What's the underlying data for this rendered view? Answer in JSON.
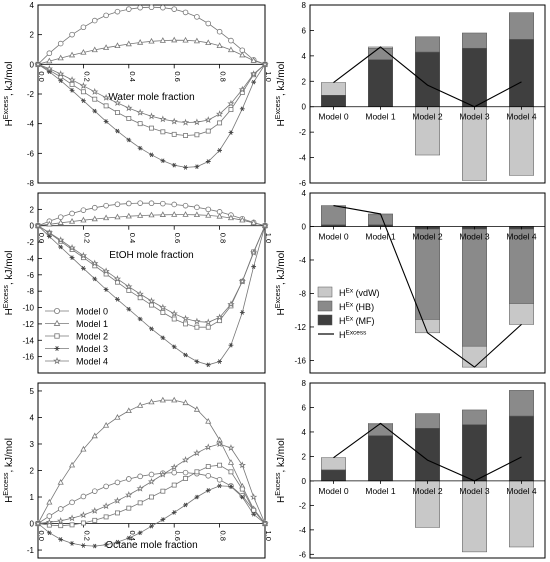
{
  "figure": {
    "legend_lines": {
      "entries": [
        "Model 0",
        "Model 1",
        "Model 2",
        "Model 3",
        "Model 4"
      ],
      "markers": [
        "circle",
        "triangle",
        "square",
        "star6",
        "star5"
      ]
    },
    "legend_bars": {
      "entries": [
        {
          "base": "H",
          "sup": "Ex",
          "rest": " (vdW)",
          "color": "#c8c8c8"
        },
        {
          "base": "H",
          "sup": "Ex",
          "rest": " (HB)",
          "color": "#8a8a8a"
        },
        {
          "base": "H",
          "sup": "Ex",
          "rest": " (MF)",
          "color": "#3f3f3f"
        },
        {
          "base": "H",
          "sup": "Excess",
          "rest": "",
          "color": "#000000"
        }
      ]
    },
    "colors": {
      "vdW": "#c8c8c8",
      "HB": "#8a8a8a",
      "MF": "#3f3f3f",
      "line": "#000000",
      "curve": "#777777"
    }
  },
  "chart_data": [
    {
      "id": "line-water",
      "type": "line",
      "xlabel": "Water mole fraction",
      "ylabel": {
        "base": "H",
        "sup": "Excess",
        "rest": ", kJ/mol"
      },
      "xlim": [
        0,
        1
      ],
      "ylim": [
        -8,
        4
      ],
      "xticks": [
        0.0,
        0.2,
        0.4,
        0.6,
        0.8,
        1.0
      ],
      "yticks": [
        -8,
        -6,
        -4,
        -2,
        0,
        2,
        4
      ],
      "series": [
        {
          "name": "Model 0",
          "x": [
            0,
            0.05,
            0.1,
            0.15,
            0.2,
            0.25,
            0.3,
            0.35,
            0.4,
            0.45,
            0.5,
            0.55,
            0.6,
            0.65,
            0.7,
            0.75,
            0.8,
            0.85,
            0.9,
            0.95,
            1
          ],
          "y": [
            0,
            0.75,
            1.4,
            2.0,
            2.5,
            2.95,
            3.3,
            3.55,
            3.72,
            3.82,
            3.85,
            3.82,
            3.72,
            3.5,
            3.2,
            2.75,
            2.2,
            1.6,
            0.95,
            0.3,
            0
          ]
        },
        {
          "name": "Model 1",
          "x": [
            0,
            0.05,
            0.1,
            0.15,
            0.2,
            0.25,
            0.3,
            0.35,
            0.4,
            0.45,
            0.5,
            0.55,
            0.6,
            0.65,
            0.7,
            0.75,
            0.8,
            0.85,
            0.9,
            0.95,
            1
          ],
          "y": [
            0,
            0.22,
            0.42,
            0.62,
            0.8,
            0.97,
            1.12,
            1.25,
            1.37,
            1.47,
            1.55,
            1.6,
            1.63,
            1.62,
            1.57,
            1.45,
            1.25,
            0.97,
            0.62,
            0.25,
            0
          ]
        },
        {
          "name": "Model 2",
          "x": [
            0,
            0.05,
            0.1,
            0.15,
            0.2,
            0.25,
            0.3,
            0.35,
            0.4,
            0.45,
            0.5,
            0.55,
            0.6,
            0.65,
            0.7,
            0.75,
            0.8,
            0.85,
            0.9,
            0.95,
            1
          ],
          "y": [
            0,
            -0.4,
            -0.85,
            -1.35,
            -1.85,
            -2.35,
            -2.8,
            -3.25,
            -3.65,
            -4.0,
            -4.3,
            -4.55,
            -4.72,
            -4.8,
            -4.75,
            -4.5,
            -3.95,
            -3.05,
            -1.9,
            -0.7,
            0
          ]
        },
        {
          "name": "Model 3",
          "x": [
            0,
            0.05,
            0.1,
            0.15,
            0.2,
            0.25,
            0.3,
            0.35,
            0.4,
            0.45,
            0.5,
            0.55,
            0.6,
            0.65,
            0.7,
            0.75,
            0.8,
            0.85,
            0.9,
            0.95,
            1
          ],
          "y": [
            0,
            -0.5,
            -1.1,
            -1.75,
            -2.45,
            -3.15,
            -3.85,
            -4.5,
            -5.1,
            -5.65,
            -6.1,
            -6.5,
            -6.8,
            -6.95,
            -6.9,
            -6.55,
            -5.8,
            -4.6,
            -3.0,
            -1.2,
            0
          ]
        },
        {
          "name": "Model 4",
          "x": [
            0,
            0.05,
            0.1,
            0.15,
            0.2,
            0.25,
            0.3,
            0.35,
            0.4,
            0.45,
            0.5,
            0.55,
            0.6,
            0.65,
            0.7,
            0.75,
            0.8,
            0.85,
            0.9,
            0.95,
            1
          ],
          "y": [
            0,
            -0.3,
            -0.65,
            -1.05,
            -1.45,
            -1.85,
            -2.25,
            -2.6,
            -2.95,
            -3.25,
            -3.5,
            -3.7,
            -3.85,
            -3.92,
            -3.9,
            -3.75,
            -3.35,
            -2.65,
            -1.7,
            -0.65,
            0
          ]
        }
      ]
    },
    {
      "id": "bar-water",
      "type": "bar",
      "ylabel": {
        "base": "H",
        "sup": "Excess",
        "rest": ", kJ/mol"
      },
      "categories": [
        "Model 0",
        "Model 1",
        "Model 2",
        "Model 3",
        "Model 4"
      ],
      "ylim": [
        -6,
        8
      ],
      "yticks": [
        -6,
        -4,
        -2,
        0,
        2,
        4,
        6,
        8
      ],
      "series": [
        {
          "name": "MF",
          "values": [
            0.9,
            3.7,
            4.3,
            4.6,
            5.3
          ]
        },
        {
          "name": "HB",
          "values": [
            0.0,
            0.9,
            1.2,
            1.2,
            2.1
          ]
        },
        {
          "name": "vdW",
          "values": [
            1.0,
            0.1,
            -3.8,
            -5.8,
            -5.4
          ]
        }
      ],
      "total": [
        1.9,
        4.7,
        1.7,
        0.0,
        1.95
      ]
    },
    {
      "id": "line-etoh",
      "type": "line",
      "xlabel": "EtOH mole fraction",
      "ylabel": {
        "base": "H",
        "sup": "Excess",
        "rest": ", kJ/mol"
      },
      "xlim": [
        0,
        1
      ],
      "ylim": [
        -18,
        4
      ],
      "xticks": [
        0.0,
        0.2,
        0.4,
        0.6,
        0.8,
        1.0
      ],
      "yticks": [
        -16,
        -14,
        -12,
        -10,
        -8,
        -6,
        -4,
        -2,
        0,
        2
      ],
      "series": [
        {
          "name": "Model 0",
          "x": [
            0,
            0.05,
            0.1,
            0.15,
            0.2,
            0.25,
            0.3,
            0.35,
            0.4,
            0.45,
            0.5,
            0.55,
            0.6,
            0.65,
            0.7,
            0.75,
            0.8,
            0.85,
            0.9,
            0.95,
            1
          ],
          "y": [
            0,
            0.55,
            1.05,
            1.5,
            1.9,
            2.2,
            2.45,
            2.62,
            2.72,
            2.76,
            2.75,
            2.7,
            2.6,
            2.45,
            2.25,
            2.0,
            1.7,
            1.3,
            0.85,
            0.4,
            0
          ]
        },
        {
          "name": "Model 1",
          "x": [
            0,
            0.05,
            0.1,
            0.15,
            0.2,
            0.25,
            0.3,
            0.35,
            0.4,
            0.45,
            0.5,
            0.55,
            0.6,
            0.65,
            0.7,
            0.75,
            0.8,
            0.85,
            0.9,
            0.95,
            1
          ],
          "y": [
            0,
            0.18,
            0.36,
            0.52,
            0.68,
            0.82,
            0.95,
            1.06,
            1.16,
            1.24,
            1.3,
            1.34,
            1.36,
            1.36,
            1.33,
            1.26,
            1.14,
            0.95,
            0.68,
            0.35,
            0
          ]
        },
        {
          "name": "Model 2",
          "x": [
            0,
            0.05,
            0.1,
            0.15,
            0.2,
            0.25,
            0.3,
            0.35,
            0.4,
            0.45,
            0.5,
            0.55,
            0.6,
            0.65,
            0.7,
            0.75,
            0.8,
            0.85,
            0.9,
            0.95,
            1
          ],
          "y": [
            0,
            -0.9,
            -1.9,
            -2.9,
            -3.9,
            -4.9,
            -5.9,
            -6.9,
            -7.9,
            -8.8,
            -9.7,
            -10.6,
            -11.4,
            -12.0,
            -12.4,
            -12.4,
            -11.6,
            -9.8,
            -6.8,
            -3.2,
            0
          ]
        },
        {
          "name": "Model 3",
          "x": [
            0,
            0.05,
            0.1,
            0.15,
            0.2,
            0.25,
            0.3,
            0.35,
            0.4,
            0.45,
            0.5,
            0.55,
            0.6,
            0.65,
            0.7,
            0.75,
            0.8,
            0.85,
            0.9,
            0.95,
            1
          ],
          "y": [
            0,
            -1.3,
            -2.6,
            -3.9,
            -5.2,
            -6.5,
            -7.8,
            -9.0,
            -10.2,
            -11.4,
            -12.6,
            -13.7,
            -14.8,
            -15.8,
            -16.6,
            -17.0,
            -16.6,
            -14.6,
            -10.6,
            -5.0,
            0
          ]
        },
        {
          "name": "Model 4",
          "x": [
            0,
            0.05,
            0.1,
            0.15,
            0.2,
            0.25,
            0.3,
            0.35,
            0.4,
            0.45,
            0.5,
            0.55,
            0.6,
            0.65,
            0.7,
            0.75,
            0.8,
            0.85,
            0.9,
            0.95,
            1
          ],
          "y": [
            0,
            -0.85,
            -1.75,
            -2.7,
            -3.65,
            -4.6,
            -5.55,
            -6.5,
            -7.45,
            -8.35,
            -9.2,
            -10.0,
            -10.75,
            -11.35,
            -11.7,
            -11.8,
            -11.2,
            -9.6,
            -6.8,
            -3.3,
            0
          ]
        }
      ]
    },
    {
      "id": "bar-etoh",
      "type": "bar",
      "ylabel": {
        "base": "H",
        "sup": "Excess",
        "rest": ", kJ/mol"
      },
      "categories": [
        "Model 0",
        "Model 1",
        "Model 2",
        "Model 3",
        "Model 4"
      ],
      "ylim": [
        -17.5,
        4
      ],
      "yticks": [
        -16,
        -12,
        -8,
        -4,
        0,
        4
      ],
      "series": [
        {
          "name": "MF",
          "values": [
            0.2,
            0.2,
            -0.3,
            -0.3,
            -0.3
          ]
        },
        {
          "name": "HB",
          "values": [
            2.3,
            1.2,
            -10.8,
            -14.0,
            -8.9
          ]
        },
        {
          "name": "vdW",
          "values": [
            0.0,
            0.1,
            -1.6,
            -2.5,
            -2.5
          ]
        }
      ],
      "total": [
        2.5,
        1.5,
        -12.7,
        -16.8,
        -11.7
      ]
    },
    {
      "id": "line-octane",
      "type": "line",
      "xlabel": "Octane mole fraction",
      "ylabel": {
        "base": "H",
        "sup": "Excess",
        "rest": ", kJ/mol"
      },
      "xlim": [
        0,
        1
      ],
      "ylim": [
        -1.3,
        5.3
      ],
      "xticks": [
        0.0,
        0.2,
        0.4,
        0.6,
        0.8,
        1.0
      ],
      "yticks": [
        -1,
        0,
        1,
        2,
        3,
        4,
        5
      ],
      "series": [
        {
          "name": "Model 0",
          "x": [
            0,
            0.05,
            0.1,
            0.15,
            0.2,
            0.25,
            0.3,
            0.35,
            0.4,
            0.45,
            0.5,
            0.55,
            0.6,
            0.65,
            0.7,
            0.75,
            0.8,
            0.85,
            0.9,
            0.95,
            1
          ],
          "y": [
            0,
            0.28,
            0.55,
            0.8,
            1.02,
            1.22,
            1.4,
            1.55,
            1.68,
            1.78,
            1.85,
            1.9,
            1.92,
            1.92,
            1.88,
            1.8,
            1.65,
            1.42,
            1.05,
            0.5,
            0
          ]
        },
        {
          "name": "Model 1",
          "x": [
            0,
            0.05,
            0.1,
            0.15,
            0.2,
            0.25,
            0.3,
            0.35,
            0.4,
            0.45,
            0.5,
            0.55,
            0.6,
            0.65,
            0.7,
            0.75,
            0.8,
            0.85,
            0.9,
            0.95,
            1
          ],
          "y": [
            0,
            0.8,
            1.55,
            2.2,
            2.8,
            3.3,
            3.7,
            4.0,
            4.25,
            4.45,
            4.58,
            4.65,
            4.65,
            4.55,
            4.3,
            3.85,
            3.15,
            2.3,
            1.4,
            0.55,
            0
          ]
        },
        {
          "name": "Model 2",
          "x": [
            0,
            0.05,
            0.1,
            0.15,
            0.2,
            0.25,
            0.3,
            0.35,
            0.4,
            0.45,
            0.5,
            0.55,
            0.6,
            0.65,
            0.7,
            0.75,
            0.8,
            0.85,
            0.9,
            0.95,
            1
          ],
          "y": [
            0,
            -0.06,
            -0.08,
            -0.05,
            0.02,
            0.12,
            0.25,
            0.4,
            0.58,
            0.78,
            1.0,
            1.22,
            1.45,
            1.7,
            1.95,
            2.15,
            2.2,
            1.95,
            1.3,
            0.5,
            0
          ]
        },
        {
          "name": "Model 3",
          "x": [
            0,
            0.05,
            0.1,
            0.15,
            0.2,
            0.25,
            0.3,
            0.35,
            0.4,
            0.45,
            0.5,
            0.55,
            0.6,
            0.65,
            0.7,
            0.75,
            0.8,
            0.85,
            0.9,
            0.95,
            1
          ],
          "y": [
            0,
            -0.35,
            -0.6,
            -0.75,
            -0.83,
            -0.85,
            -0.8,
            -0.7,
            -0.55,
            -0.35,
            -0.1,
            0.15,
            0.42,
            0.7,
            1.0,
            1.25,
            1.42,
            1.4,
            1.0,
            0.35,
            0
          ]
        },
        {
          "name": "Model 4",
          "x": [
            0,
            0.05,
            0.1,
            0.15,
            0.2,
            0.25,
            0.3,
            0.35,
            0.4,
            0.45,
            0.5,
            0.55,
            0.6,
            0.65,
            0.7,
            0.75,
            0.8,
            0.85,
            0.9,
            0.95,
            1
          ],
          "y": [
            0,
            0.05,
            0.1,
            0.2,
            0.32,
            0.48,
            0.66,
            0.86,
            1.08,
            1.32,
            1.58,
            1.85,
            2.12,
            2.4,
            2.66,
            2.88,
            3.0,
            2.85,
            2.2,
            1.0,
            0
          ]
        }
      ]
    },
    {
      "id": "bar-octane",
      "type": "bar",
      "ylabel": {
        "base": "H",
        "sup": "Excess",
        "rest": ", kJ/mol"
      },
      "categories": [
        "Model 0",
        "Model 1",
        "Model 2",
        "Model 3",
        "Model 4"
      ],
      "ylim": [
        -6.3,
        8
      ],
      "yticks": [
        -6,
        -4,
        -2,
        0,
        2,
        4,
        6,
        8
      ],
      "series": [
        {
          "name": "MF",
          "values": [
            0.9,
            3.7,
            4.3,
            4.6,
            5.3
          ]
        },
        {
          "name": "HB",
          "values": [
            0.0,
            0.9,
            1.2,
            1.2,
            2.1
          ]
        },
        {
          "name": "vdW",
          "values": [
            1.0,
            0.1,
            -3.8,
            -5.8,
            -5.4
          ]
        }
      ],
      "total": [
        1.9,
        4.7,
        1.7,
        0.0,
        1.95
      ]
    }
  ]
}
